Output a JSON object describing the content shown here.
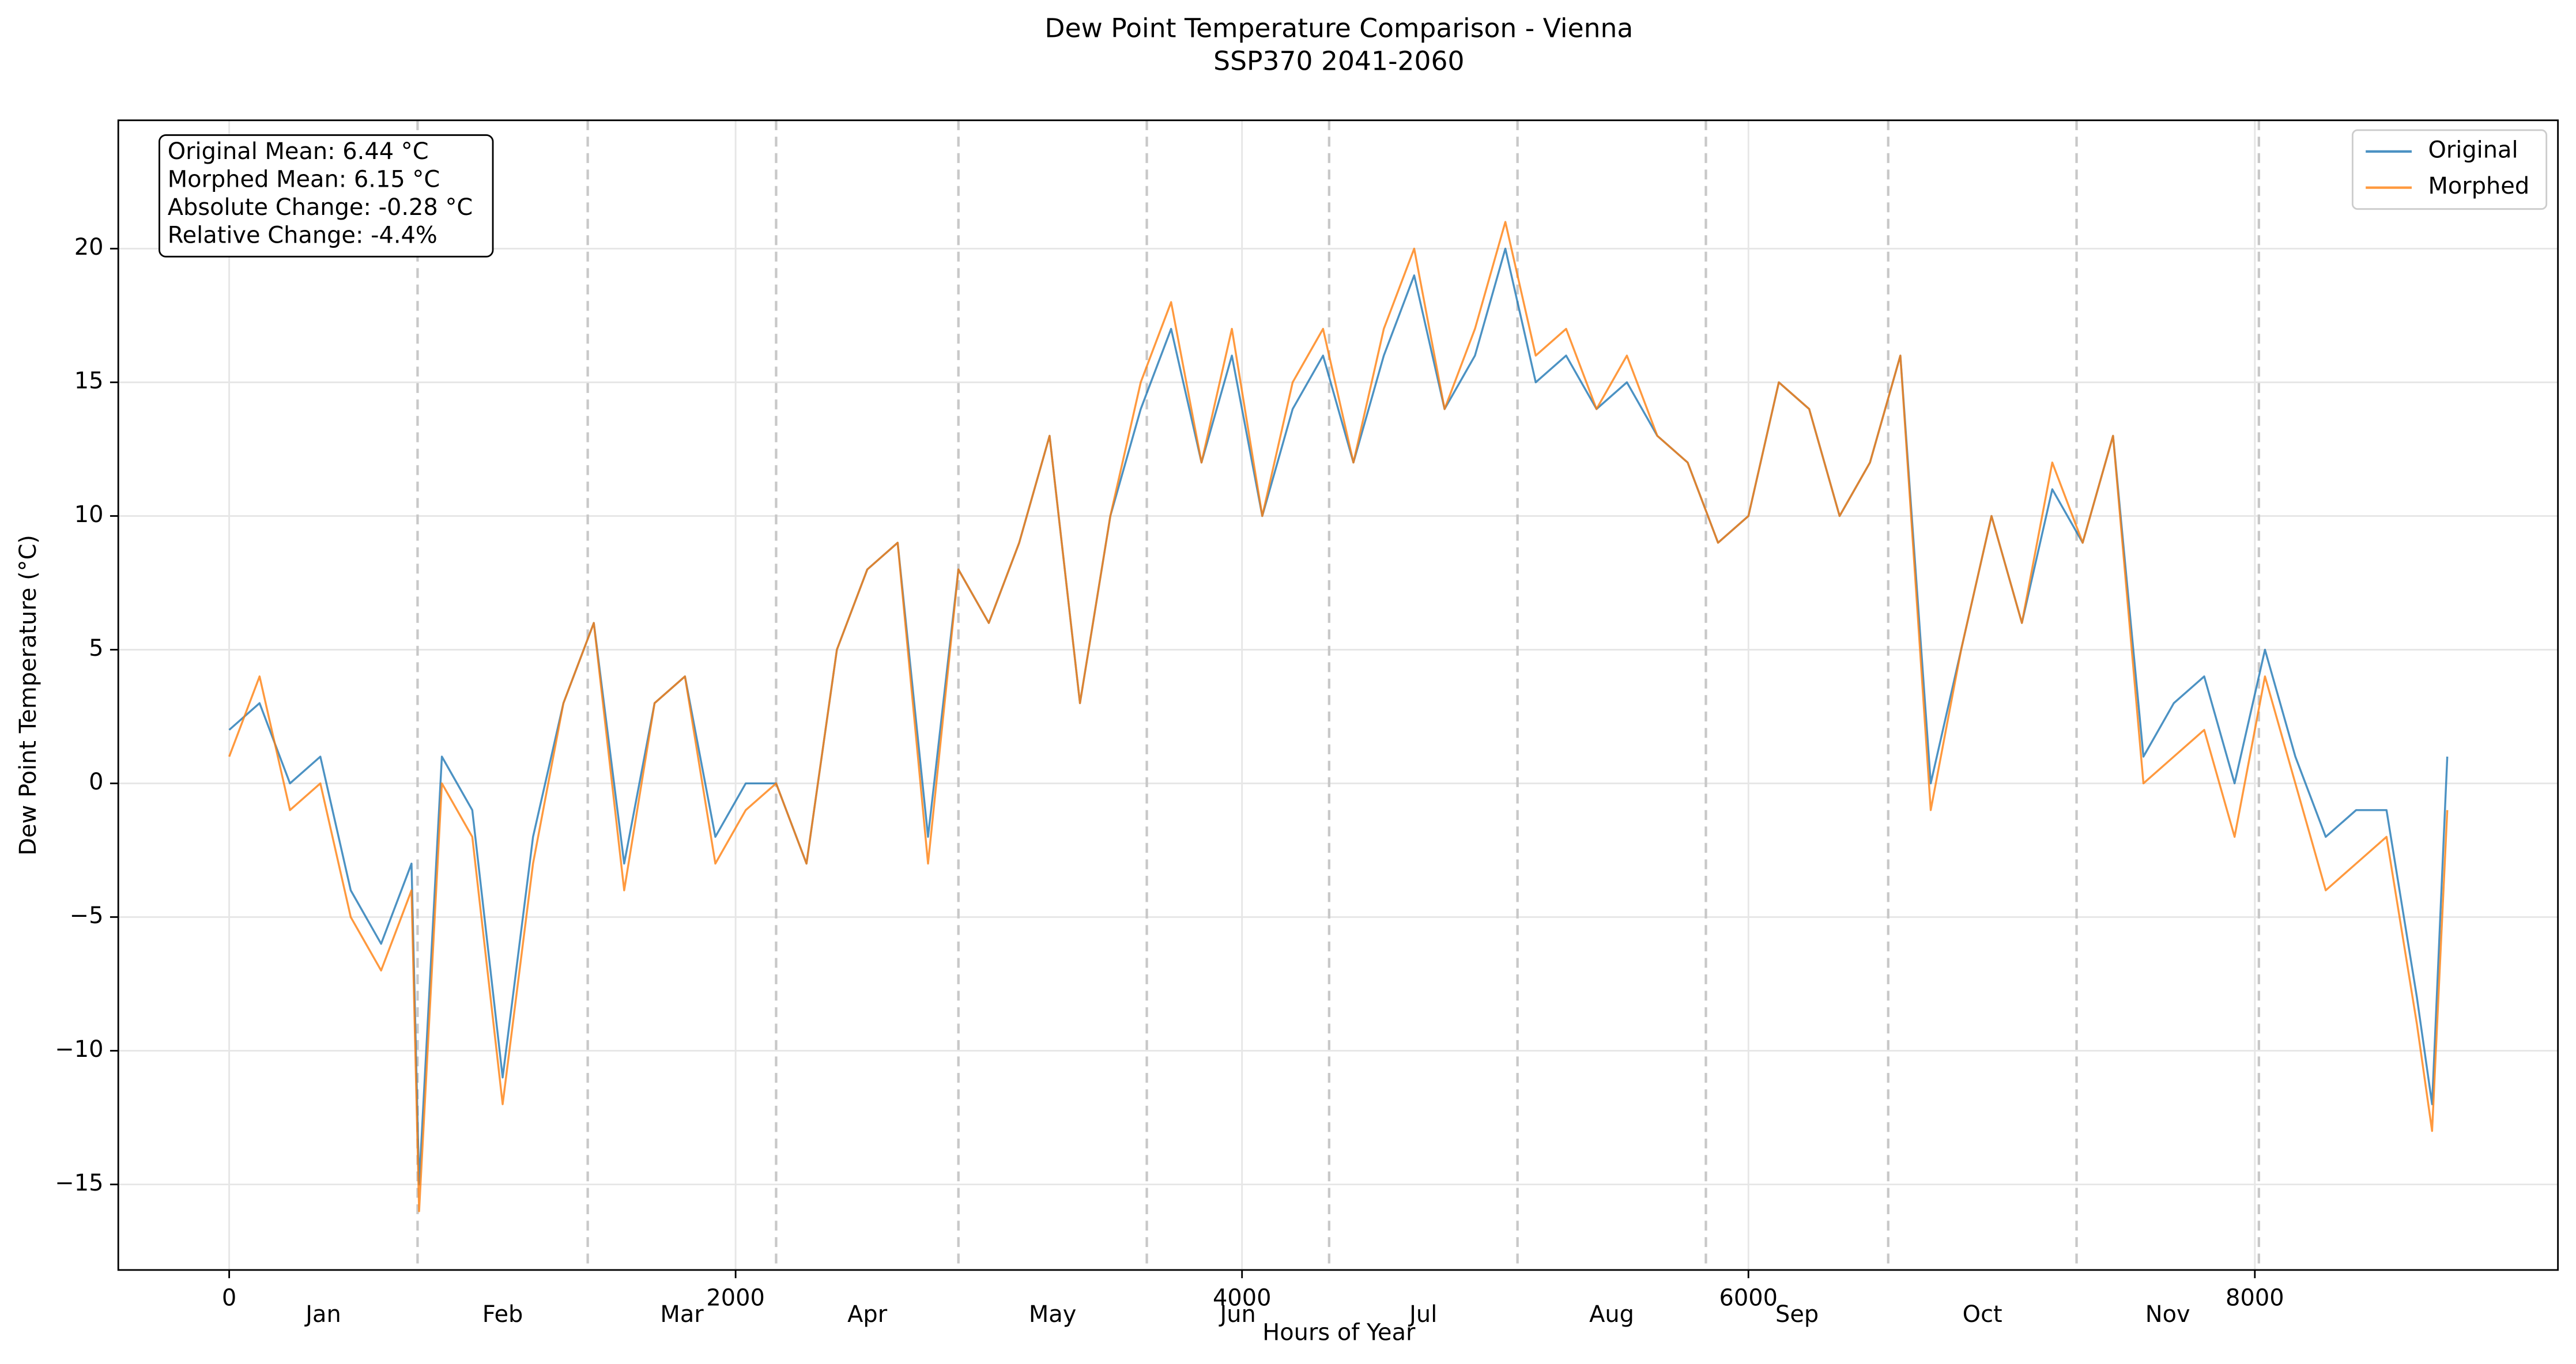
{
  "chart_data": {
    "type": "line",
    "title": "Dew Point Temperature Comparison - Vienna",
    "subtitle": "SSP370 2041-2060",
    "xlabel": "Hours of Year",
    "ylabel": "Dew Point Temperature (°C)",
    "x": [
      0,
      120,
      240,
      360,
      480,
      600,
      720,
      750,
      840,
      960,
      1080,
      1200,
      1320,
      1440,
      1560,
      1680,
      1800,
      1920,
      2040,
      2160,
      2280,
      2400,
      2520,
      2640,
      2760,
      2880,
      3000,
      3120,
      3240,
      3360,
      3480,
      3600,
      3720,
      3840,
      3960,
      4080,
      4200,
      4320,
      4440,
      4560,
      4680,
      4800,
      4920,
      5040,
      5160,
      5280,
      5400,
      5520,
      5640,
      5760,
      5880,
      6000,
      6120,
      6240,
      6360,
      6480,
      6600,
      6720,
      6840,
      6960,
      7080,
      7200,
      7320,
      7440,
      7560,
      7680,
      7800,
      7920,
      8040,
      8160,
      8280,
      8400,
      8520,
      8640,
      8700,
      8760
    ],
    "series": [
      {
        "name": "Original",
        "color": "#1f77b4",
        "values": [
          2,
          3,
          0,
          1,
          -4,
          -6,
          -3,
          -15,
          1,
          -1,
          -11,
          -2,
          3,
          6,
          -3,
          3,
          4,
          -2,
          0,
          0,
          -3,
          5,
          8,
          9,
          -2,
          8,
          6,
          9,
          13,
          3,
          10,
          14,
          17,
          12,
          16,
          10,
          14,
          16,
          12,
          16,
          19,
          14,
          16,
          20,
          15,
          16,
          14,
          15,
          13,
          12,
          9,
          10,
          15,
          14,
          10,
          12,
          16,
          0,
          5,
          10,
          6,
          11,
          9,
          13,
          1,
          3,
          4,
          0,
          5,
          1,
          -2,
          -1,
          -1,
          -8,
          -12,
          1
        ]
      },
      {
        "name": "Morphed",
        "color": "#ff7f0e",
        "values": [
          1,
          4,
          -1,
          0,
          -5,
          -7,
          -4,
          -16,
          0,
          -2,
          -12,
          -3,
          3,
          6,
          -4,
          3,
          4,
          -3,
          -1,
          0,
          -3,
          5,
          8,
          9,
          -3,
          8,
          6,
          9,
          13,
          3,
          10,
          15,
          18,
          12,
          17,
          10,
          15,
          17,
          12,
          17,
          20,
          14,
          17,
          21,
          16,
          17,
          14,
          16,
          13,
          12,
          9,
          10,
          15,
          14,
          10,
          12,
          16,
          -1,
          5,
          10,
          6,
          12,
          9,
          13,
          0,
          1,
          2,
          -2,
          4,
          0,
          -4,
          -3,
          -2,
          -9,
          -13,
          -1
        ]
      }
    ],
    "xlim": [
      -438,
      9197
    ],
    "ylim": [
      -18.2,
      24.8
    ],
    "xticks": [
      0,
      2000,
      4000,
      6000,
      8000
    ],
    "yticks": [
      {
        "value": -15,
        "label": "−15"
      },
      {
        "value": -10,
        "label": "−10"
      },
      {
        "value": -5,
        "label": "−5"
      },
      0,
      5,
      10,
      15,
      20
    ],
    "grid": true,
    "legend": "upper right",
    "month_boundaries": [
      744,
      1416,
      2160,
      2880,
      3624,
      4344,
      5088,
      5832,
      6552,
      7296,
      8016
    ],
    "month_labels": {
      "labels": [
        "Jan",
        "Feb",
        "Mar",
        "Apr",
        "May",
        "Jun",
        "Jul",
        "Aug",
        "Sep",
        "Oct",
        "Nov"
      ],
      "x": [
        372,
        1080,
        1788,
        2520,
        3252,
        3984,
        4716,
        5460,
        6192,
        6924,
        7656
      ]
    },
    "annotation_lines": [
      "Original Mean: 6.44 °C",
      "Morphed Mean: 6.15 °C",
      "Absolute Change: -0.28 °C",
      "Relative Change: -4.4%"
    ]
  }
}
